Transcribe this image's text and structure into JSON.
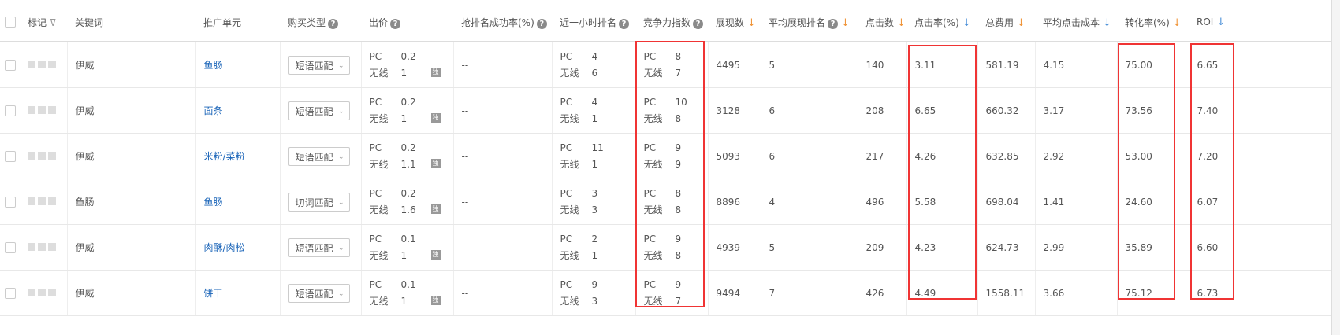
{
  "headers": {
    "mark": "标记",
    "keyword": "关键词",
    "unit": "推广单元",
    "buy_type": "购买类型",
    "bid": "出价",
    "rank_rate": "抢排名成功率(%)",
    "hour_rank": "近一小时排名",
    "compete": "竞争力指数",
    "impressions": "展现数",
    "avg_rank": "平均展现排名",
    "clicks": "点击数",
    "ctr": "点击率(%)",
    "cost": "总费用",
    "cpc": "平均点击成本",
    "cvr": "转化率(%)",
    "roi": "ROI"
  },
  "labels": {
    "pc": "PC",
    "mobile": "无线",
    "exclusive": "独",
    "help": "?",
    "sort_arrow": "↓",
    "filter": "⊽",
    "chevron": "⌄"
  },
  "colors": {
    "highlight_border": "#f03434",
    "link": "#1a64b8",
    "sort_orange": "#f0953a",
    "sort_blue": "#4a8fd8"
  },
  "rows": [
    {
      "keyword": "伊威",
      "unit": "鱼肠",
      "buy_type": "短语匹配",
      "bid_pc": "0.2",
      "bid_mobile": "1",
      "rank_rate": "--",
      "hour_pc": "4",
      "hour_mobile": "6",
      "comp_pc": "8",
      "comp_mobile": "7",
      "impressions": "4495",
      "avg_rank": "5",
      "clicks": "140",
      "ctr": "3.11",
      "cost": "581.19",
      "cpc": "4.15",
      "cvr": "75.00",
      "roi": "6.65"
    },
    {
      "keyword": "伊威",
      "unit": "面条",
      "buy_type": "短语匹配",
      "bid_pc": "0.2",
      "bid_mobile": "1",
      "rank_rate": "--",
      "hour_pc": "4",
      "hour_mobile": "1",
      "comp_pc": "10",
      "comp_mobile": "8",
      "impressions": "3128",
      "avg_rank": "6",
      "clicks": "208",
      "ctr": "6.65",
      "cost": "660.32",
      "cpc": "3.17",
      "cvr": "73.56",
      "roi": "7.40"
    },
    {
      "keyword": "伊威",
      "unit": "米粉/菜粉",
      "buy_type": "短语匹配",
      "bid_pc": "0.2",
      "bid_mobile": "1.1",
      "rank_rate": "--",
      "hour_pc": "11",
      "hour_mobile": "1",
      "comp_pc": "9",
      "comp_mobile": "9",
      "impressions": "5093",
      "avg_rank": "6",
      "clicks": "217",
      "ctr": "4.26",
      "cost": "632.85",
      "cpc": "2.92",
      "cvr": "53.00",
      "roi": "7.20"
    },
    {
      "keyword": "鱼肠",
      "unit": "鱼肠",
      "buy_type": "切词匹配",
      "bid_pc": "0.2",
      "bid_mobile": "1.6",
      "rank_rate": "--",
      "hour_pc": "3",
      "hour_mobile": "3",
      "comp_pc": "8",
      "comp_mobile": "8",
      "impressions": "8896",
      "avg_rank": "4",
      "clicks": "496",
      "ctr": "5.58",
      "cost": "698.04",
      "cpc": "1.41",
      "cvr": "24.60",
      "roi": "6.07"
    },
    {
      "keyword": "伊威",
      "unit": "肉酥/肉松",
      "buy_type": "短语匹配",
      "bid_pc": "0.1",
      "bid_mobile": "1",
      "rank_rate": "--",
      "hour_pc": "2",
      "hour_mobile": "1",
      "comp_pc": "9",
      "comp_mobile": "8",
      "impressions": "4939",
      "avg_rank": "5",
      "clicks": "209",
      "ctr": "4.23",
      "cost": "624.73",
      "cpc": "2.99",
      "cvr": "35.89",
      "roi": "6.60"
    },
    {
      "keyword": "伊威",
      "unit": "饼干",
      "buy_type": "短语匹配",
      "bid_pc": "0.1",
      "bid_mobile": "1",
      "rank_rate": "--",
      "hour_pc": "9",
      "hour_mobile": "3",
      "comp_pc": "9",
      "comp_mobile": "7",
      "impressions": "9494",
      "avg_rank": "7",
      "clicks": "426",
      "ctr": "4.49",
      "cost": "1558.11",
      "cpc": "3.66",
      "cvr": "75.12",
      "roi": "6.73"
    }
  ]
}
